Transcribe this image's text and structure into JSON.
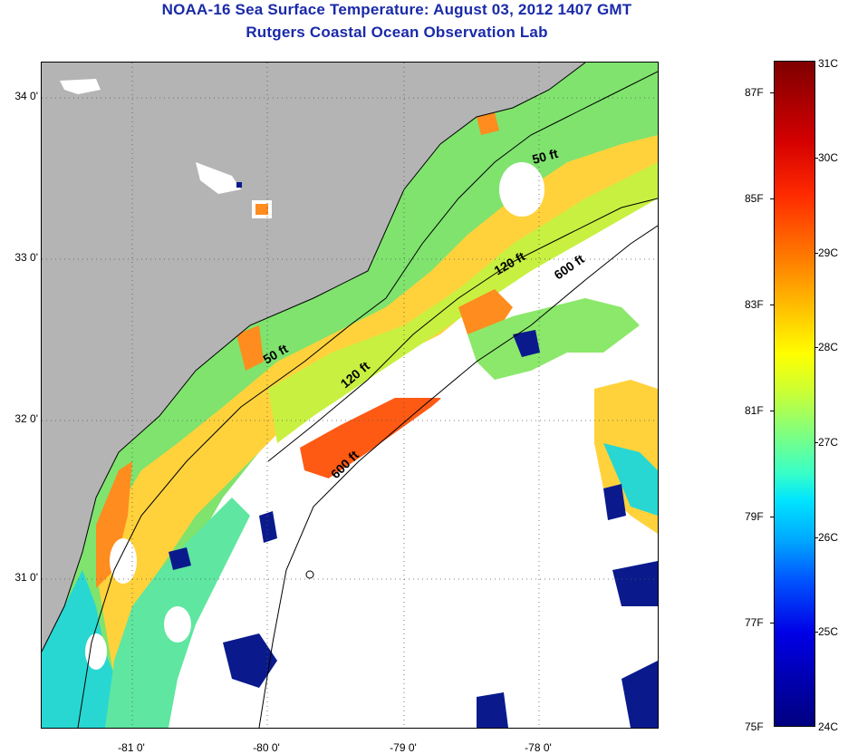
{
  "title": {
    "line1": "NOAA-16 Sea Surface Temperature:  August 03, 2012 1407 GMT",
    "line2": "Rutgers Coastal Ocean Observation Lab"
  },
  "map": {
    "lat_labels": [
      "34 0'",
      "33 0'",
      "32 0'",
      "31 0'"
    ],
    "lon_labels": [
      "-81 0'",
      "-80 0'",
      "-79 0'",
      "-78 0'"
    ],
    "contour_labels": {
      "c50_north": "50 ft",
      "c50_south": "50 ft",
      "c120_north": "120 ft",
      "c120_south": "120 ft",
      "c600_north": "600 ft",
      "c600_south": "600 ft"
    },
    "colors": {
      "land": "#b4b4b4",
      "no_data": "#ffffff",
      "warm": "#ff6a1a",
      "mid": "#ffd23c",
      "cool": "#8be86a",
      "cold": "#28d7d2",
      "coldest": "#0a1a8c"
    }
  },
  "colorbar": {
    "fahrenheit": [
      "87F",
      "85F",
      "83F",
      "81F",
      "79F",
      "77F",
      "75F"
    ],
    "celsius": [
      "31C",
      "30C",
      "29C",
      "28C",
      "27C",
      "26C",
      "25C",
      "24C"
    ]
  }
}
